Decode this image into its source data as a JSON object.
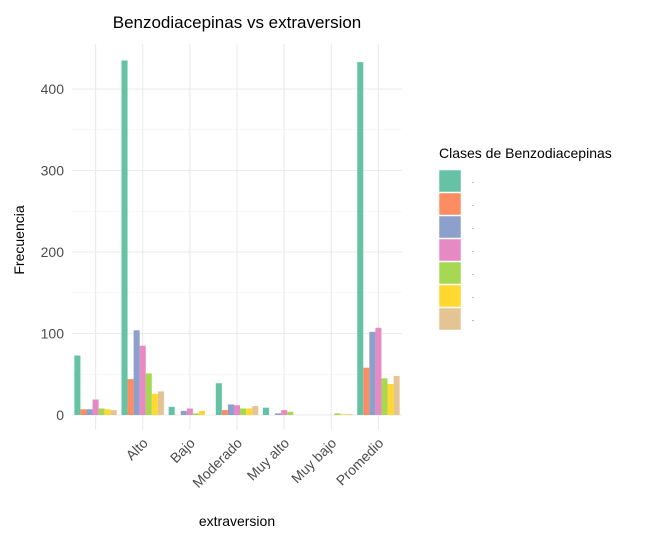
{
  "chart_data": {
    "type": "bar",
    "title": "Benzodiacepinas vs extraversion",
    "xlabel": "extraversion",
    "ylabel": "Frecuencia",
    "categories": [
      "",
      "Alto",
      "Bajo",
      "Moderado",
      "Muy alto",
      "Muy bajo",
      "Promedio"
    ],
    "ylim": [
      0,
      450
    ],
    "yticks": [
      0,
      100,
      200,
      300,
      400
    ],
    "grid": true,
    "legend": {
      "title": "Clases de Benzodiacepinas",
      "position": "right",
      "labels": [
        "-",
        "-",
        "-",
        "-",
        "-",
        "-",
        "-"
      ]
    },
    "colors": [
      "#66c2a5",
      "#fc8d62",
      "#8da0cb",
      "#e78ac3",
      "#a6d854",
      "#ffd92f",
      "#e5c494"
    ],
    "series": [
      {
        "values": [
          73,
          435,
          10,
          39,
          9,
          0,
          433
        ]
      },
      {
        "values": [
          7,
          44,
          0,
          6,
          0,
          0,
          58
        ]
      },
      {
        "values": [
          7,
          104,
          5,
          13,
          2,
          0,
          102
        ]
      },
      {
        "values": [
          19,
          85,
          8,
          12,
          6,
          0,
          107
        ]
      },
      {
        "values": [
          8,
          51,
          2,
          8,
          4,
          2,
          45
        ]
      },
      {
        "values": [
          7,
          26,
          5,
          8,
          0,
          1,
          38
        ]
      },
      {
        "values": [
          6,
          29,
          0,
          11,
          0,
          1,
          48
        ]
      }
    ]
  }
}
